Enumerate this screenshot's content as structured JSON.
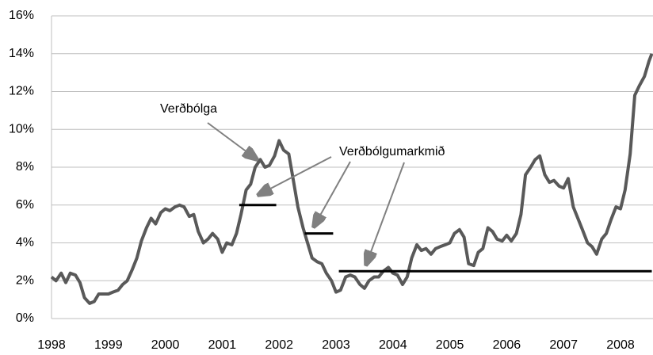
{
  "chart_data": {
    "type": "line",
    "xlim": [
      1998,
      2008.55
    ],
    "xticks": [
      1998,
      1999,
      2000,
      2001,
      2002,
      2003,
      2004,
      2005,
      2006,
      2007,
      2008
    ],
    "ylim": [
      0,
      16
    ],
    "yticks": [
      {
        "value": 0,
        "label": "0%"
      },
      {
        "value": 2,
        "label": "2%"
      },
      {
        "value": 4,
        "label": "4%"
      },
      {
        "value": 6,
        "label": "6%"
      },
      {
        "value": 8,
        "label": "8%"
      },
      {
        "value": 10,
        "label": "10%"
      },
      {
        "value": 12,
        "label": "12%"
      },
      {
        "value": 14,
        "label": "14%"
      },
      {
        "value": 16,
        "label": "16%"
      }
    ],
    "grid": true,
    "series": [
      {
        "name": "Verðbólga",
        "color": "#595959",
        "x": [
          1998.0,
          1998.08,
          1998.17,
          1998.25,
          1998.33,
          1998.42,
          1998.5,
          1998.58,
          1998.67,
          1998.75,
          1998.83,
          1998.92,
          1999.0,
          1999.08,
          1999.17,
          1999.25,
          1999.33,
          1999.42,
          1999.5,
          1999.58,
          1999.67,
          1999.75,
          1999.83,
          1999.92,
          2000.0,
          2000.08,
          2000.17,
          2000.25,
          2000.33,
          2000.42,
          2000.5,
          2000.58,
          2000.67,
          2000.75,
          2000.83,
          2000.92,
          2001.0,
          2001.08,
          2001.17,
          2001.25,
          2001.33,
          2001.42,
          2001.5,
          2001.58,
          2001.67,
          2001.75,
          2001.83,
          2001.92,
          2002.0,
          2002.08,
          2002.17,
          2002.25,
          2002.33,
          2002.42,
          2002.5,
          2002.58,
          2002.67,
          2002.75,
          2002.83,
          2002.92,
          2003.0,
          2003.08,
          2003.17,
          2003.25,
          2003.33,
          2003.42,
          2003.5,
          2003.58,
          2003.67,
          2003.75,
          2003.83,
          2003.92,
          2004.0,
          2004.08,
          2004.17,
          2004.25,
          2004.33,
          2004.42,
          2004.5,
          2004.58,
          2004.67,
          2004.75,
          2004.83,
          2004.92,
          2005.0,
          2005.08,
          2005.17,
          2005.25,
          2005.33,
          2005.42,
          2005.5,
          2005.58,
          2005.67,
          2005.75,
          2005.83,
          2005.92,
          2006.0,
          2006.08,
          2006.17,
          2006.25,
          2006.33,
          2006.42,
          2006.5,
          2006.58,
          2006.67,
          2006.75,
          2006.83,
          2006.92,
          2007.0,
          2007.08,
          2007.17,
          2007.25,
          2007.33,
          2007.42,
          2007.5,
          2007.58,
          2007.67,
          2007.75,
          2007.83,
          2007.92,
          2008.0,
          2008.08,
          2008.17,
          2008.25,
          2008.33,
          2008.42,
          2008.5,
          2008.55
        ],
        "values": [
          2.2,
          2.0,
          2.4,
          1.9,
          2.4,
          2.3,
          1.9,
          1.1,
          0.8,
          0.9,
          1.3,
          1.3,
          1.3,
          1.4,
          1.5,
          1.8,
          2.0,
          2.6,
          3.2,
          4.1,
          4.8,
          5.3,
          5.0,
          5.6,
          5.8,
          5.7,
          5.9,
          6.0,
          5.9,
          5.4,
          5.5,
          4.6,
          4.0,
          4.2,
          4.5,
          4.2,
          3.5,
          4.0,
          3.9,
          4.5,
          5.5,
          6.8,
          7.1,
          8.0,
          8.4,
          8.0,
          8.1,
          8.6,
          9.4,
          8.9,
          8.7,
          7.3,
          5.9,
          4.8,
          4.0,
          3.2,
          3.0,
          2.9,
          2.4,
          2.0,
          1.4,
          1.5,
          2.2,
          2.3,
          2.2,
          1.8,
          1.6,
          2.0,
          2.2,
          2.2,
          2.5,
          2.7,
          2.4,
          2.3,
          1.8,
          2.2,
          3.2,
          3.9,
          3.6,
          3.7,
          3.4,
          3.7,
          3.8,
          3.9,
          4.0,
          4.5,
          4.7,
          4.3,
          2.9,
          2.8,
          3.5,
          3.7,
          4.8,
          4.6,
          4.2,
          4.1,
          4.4,
          4.1,
          4.5,
          5.5,
          7.6,
          8.0,
          8.4,
          8.6,
          7.6,
          7.2,
          7.3,
          7.0,
          6.9,
          7.4,
          5.9,
          5.3,
          4.7,
          4.0,
          3.8,
          3.4,
          4.2,
          4.5,
          5.2,
          5.9,
          5.8,
          6.8,
          8.7,
          11.8,
          12.3,
          12.8,
          13.6,
          14.0
        ]
      },
      {
        "name": "Verðbólgumarkmið",
        "color": "#000000",
        "x": [
          2001.3,
          2001.95,
          2001.95,
          2002.45,
          2002.95,
          2002.95,
          2003.05,
          2008.55
        ],
        "values": [
          6,
          6,
          null,
          4.5,
          4.5,
          null,
          2.5,
          2.5
        ]
      }
    ]
  }
}
